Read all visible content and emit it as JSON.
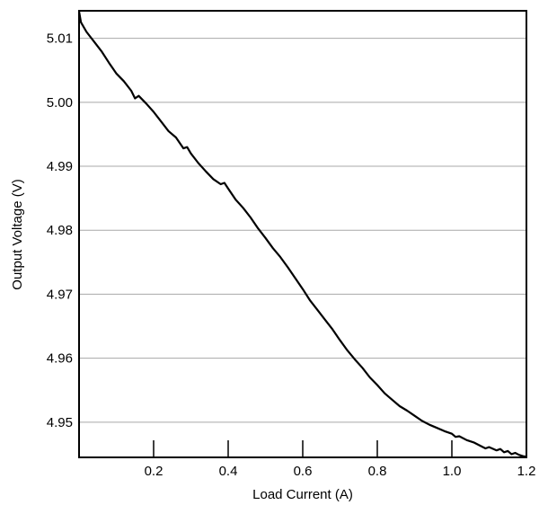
{
  "chart_data": {
    "type": "line",
    "title": "",
    "xlabel": "Load Current (A)",
    "ylabel": "Output Voltage (V)",
    "xlim": [
      0.0,
      1.2
    ],
    "ylim": [
      4.9445,
      5.0143
    ],
    "x_ticks": [
      0.2,
      0.4,
      0.6,
      0.8,
      1.0,
      1.2
    ],
    "x_tick_labels": [
      "0.2",
      "0.4",
      "0.6",
      "0.8",
      "1.0",
      "1.2"
    ],
    "y_ticks": [
      4.95,
      4.96,
      4.97,
      4.98,
      4.99,
      5.0,
      5.01
    ],
    "y_tick_labels": [
      "4.95",
      "4.96",
      "4.97",
      "4.98",
      "4.99",
      "5.00",
      "5.01"
    ],
    "grid": "horizontal",
    "series_color": "#000000",
    "series": [
      {
        "x": [
          0.0,
          0.005,
          0.02,
          0.04,
          0.06,
          0.08,
          0.1,
          0.12,
          0.14,
          0.15,
          0.16,
          0.18,
          0.2,
          0.22,
          0.24,
          0.26,
          0.28,
          0.29,
          0.3,
          0.32,
          0.34,
          0.36,
          0.38,
          0.39,
          0.4,
          0.42,
          0.44,
          0.46,
          0.48,
          0.5,
          0.52,
          0.54,
          0.56,
          0.58,
          0.6,
          0.62,
          0.64,
          0.66,
          0.68,
          0.7,
          0.72,
          0.74,
          0.76,
          0.78,
          0.8,
          0.82,
          0.84,
          0.86,
          0.88,
          0.9,
          0.92,
          0.94,
          0.96,
          0.98,
          1.0,
          1.01,
          1.02,
          1.04,
          1.06,
          1.08,
          1.09,
          1.1,
          1.12,
          1.13,
          1.14,
          1.15,
          1.16,
          1.17,
          1.18,
          1.19,
          1.2
        ],
        "y": [
          5.0142,
          5.0125,
          5.011,
          5.0095,
          5.008,
          5.0062,
          5.0045,
          5.0033,
          5.0018,
          5.0006,
          5.001,
          4.9998,
          4.9985,
          4.997,
          4.9955,
          4.9945,
          4.9928,
          4.993,
          4.992,
          4.9905,
          4.9892,
          4.988,
          4.9872,
          4.9874,
          4.9865,
          4.9848,
          4.9835,
          4.982,
          4.9803,
          4.9788,
          4.9772,
          4.9758,
          4.9742,
          4.9725,
          4.9708,
          4.969,
          4.9675,
          4.966,
          4.9645,
          4.9628,
          4.9612,
          4.9598,
          4.9585,
          4.957,
          4.9558,
          4.9545,
          4.9535,
          4.9525,
          4.9518,
          4.951,
          4.9502,
          4.9496,
          4.9491,
          4.9486,
          4.9482,
          4.9477,
          4.9478,
          4.9472,
          4.9468,
          4.9462,
          4.9459,
          4.9461,
          4.9456,
          4.9458,
          4.9453,
          4.9455,
          4.945,
          4.9452,
          4.9449,
          4.9447,
          4.9446
        ]
      }
    ]
  }
}
